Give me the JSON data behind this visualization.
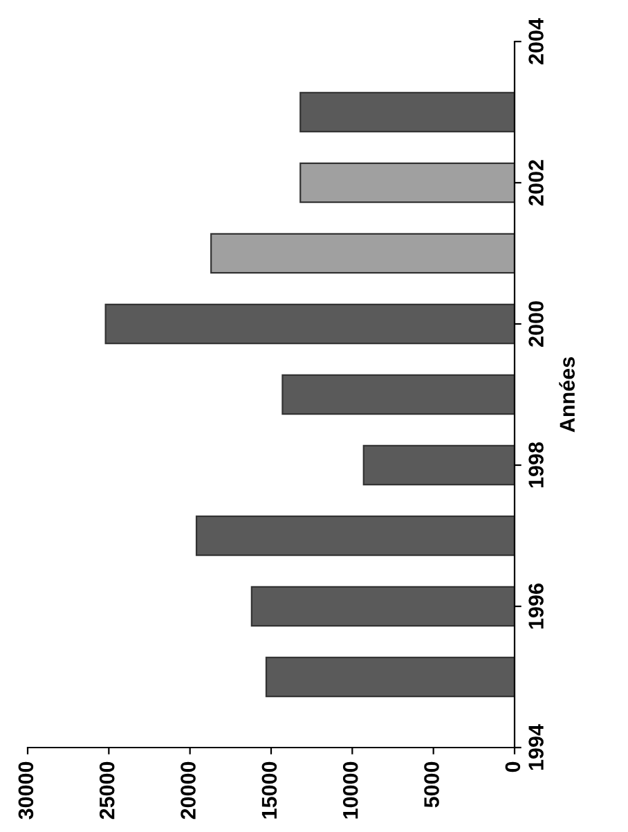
{
  "chart_data": {
    "type": "bar",
    "orientation": "horizontal",
    "ylabel": "Années",
    "x": [
      1995,
      1996,
      1997,
      1998,
      1999,
      2000,
      2001,
      2002,
      2003
    ],
    "values": [
      15300,
      16200,
      19600,
      9300,
      14300,
      25200,
      18700,
      13200,
      13200
    ],
    "colors": [
      "#5a5a5a",
      "#5a5a5a",
      "#5a5a5a",
      "#5a5a5a",
      "#5a5a5a",
      "#5a5a5a",
      "#a0a0a0",
      "#a0a0a0",
      "#5a5a5a"
    ],
    "ylim": [
      1994,
      2004
    ],
    "yticks": [
      1994,
      1996,
      1998,
      2000,
      2002,
      2004
    ],
    "xlim": [
      30000,
      0
    ],
    "xticks": [
      0,
      5000,
      10000,
      15000,
      20000,
      25000,
      30000
    ],
    "grid": false,
    "legend": false
  }
}
